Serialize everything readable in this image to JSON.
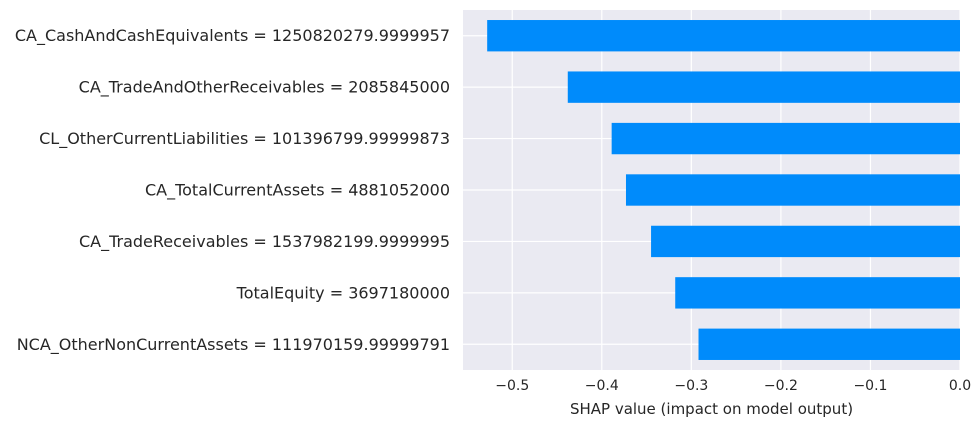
{
  "chart_data": {
    "type": "bar",
    "orientation": "horizontal",
    "categories": [
      "CA_CashAndCashEquivalents = 1250820279.9999957",
      "CA_TradeAndOtherReceivables = 2085845000",
      "CL_OtherCurrentLiabilities = 101396799.99999873",
      "CA_TotalCurrentAssets = 4881052000",
      "CA_TradeReceivables = 1537982199.9999995",
      "TotalEquity = 3697180000",
      "NCA_OtherNonCurrentAssets = 111970159.99999791"
    ],
    "values": [
      -0.528,
      -0.438,
      -0.389,
      -0.373,
      -0.345,
      -0.318,
      -0.292
    ],
    "xlabel": "SHAP value (impact on model output)",
    "ylabel": "",
    "xlim": [
      -0.555,
      0.0
    ],
    "xticks": [
      -0.5,
      -0.4,
      -0.3,
      -0.2,
      -0.1,
      0.0
    ],
    "xtick_labels": [
      "−0.5",
      "−0.4",
      "−0.3",
      "−0.2",
      "−0.1",
      "0.0"
    ],
    "grid": true,
    "colors": {
      "bar": "#008bfb",
      "plot_background": "#eaeaf2",
      "grid": "#ffffff",
      "text": "#262626"
    }
  }
}
